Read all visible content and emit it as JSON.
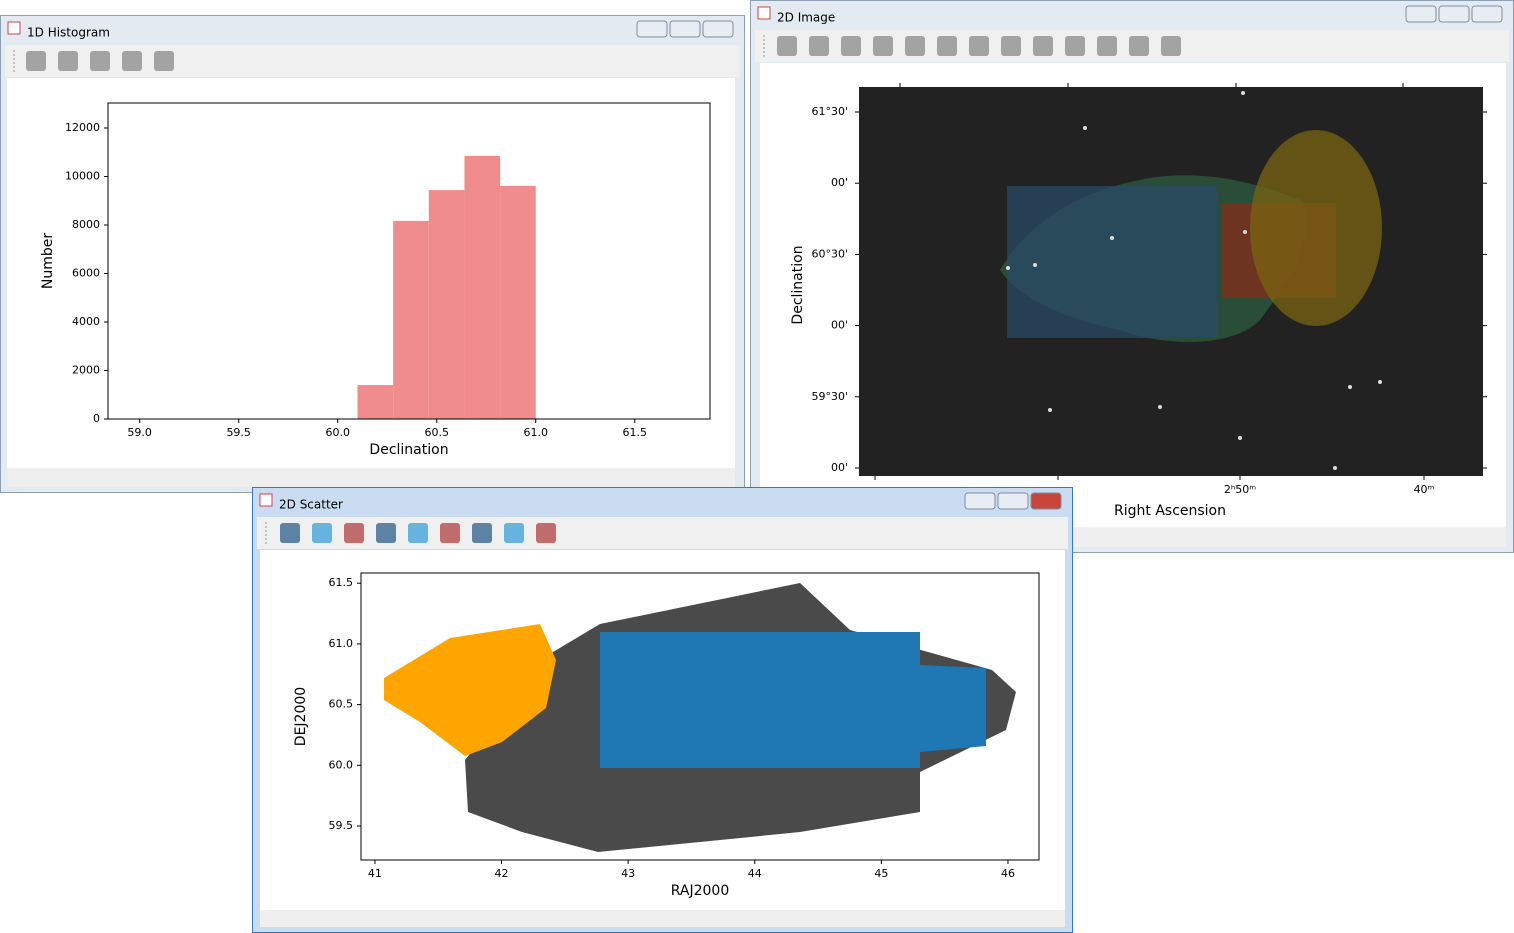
{
  "windows": [
    {
      "title": "1D Histogram"
    },
    {
      "title": "2D Image"
    },
    {
      "title": "2D Scatter"
    }
  ],
  "chart_data": [
    {
      "type": "histogram",
      "xlabel": "Declination",
      "ylabel": "Number",
      "bins": [
        60.1,
        60.28,
        60.46,
        60.64,
        60.82,
        61.0
      ],
      "values": [
        1400,
        8170,
        9440,
        10850,
        9610
      ],
      "color": "#f08c8c",
      "xlim": [
        58.84,
        61.88
      ],
      "ylim": [
        0,
        13030
      ],
      "xticks": [
        {
          "value": 59,
          "label": "59.0"
        },
        {
          "value": 59.5,
          "label": "59.5"
        },
        {
          "value": 60,
          "label": "60.0"
        },
        {
          "value": 60.5,
          "label": "60.5"
        },
        {
          "value": 61,
          "label": "61.0"
        },
        {
          "value": 61.5,
          "label": "61.5"
        }
      ],
      "yticks": [
        0,
        2000,
        4000,
        6000,
        8000,
        10000,
        12000
      ]
    },
    {
      "type": "scatter",
      "xlabel": "RAJ2000",
      "ylabel": "DEJ2000",
      "xlim": [
        40.89,
        46.245
      ],
      "ylim": [
        59.22,
        61.584
      ],
      "xticks": [
        41,
        42,
        43,
        44,
        45,
        46
      ],
      "yticks": [
        {
          "value": 59.5,
          "label": "59.5"
        },
        {
          "value": 60,
          "label": "60.0"
        },
        {
          "value": 60.5,
          "label": "60.5"
        },
        {
          "value": 61,
          "label": "61.0"
        },
        {
          "value": 61.5,
          "label": "61.5"
        }
      ]
    }
  ],
  "image": {
    "xlabel": "Right Ascension",
    "ylabel": "Declination",
    "yticks": [
      "61°30'",
      "00'",
      "60°30'",
      "00'",
      "59°30'",
      "00'"
    ],
    "xticks": [
      "2ʰ50ᵐ",
      "40ᵐ"
    ]
  }
}
